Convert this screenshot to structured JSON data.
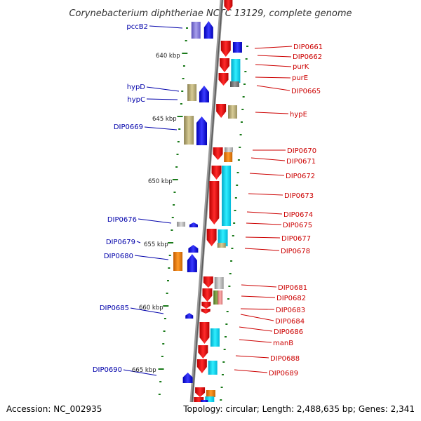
{
  "title": "Corynebacterium diphtheriae NCTC 13129, complete genome",
  "accession": "Accession: NC_002935",
  "topology": "Topology: circular; Length: 2,488,635 bp; Genes: 2,341",
  "scale_labels": [
    "640 kbp",
    "645 kbp",
    "650 kbp",
    "655 kbp",
    "660 kbp",
    "665 kbp"
  ],
  "colors": {
    "forward_label": "#0000aa",
    "reverse_label": "#cc0000",
    "tick": "#1a7a1a",
    "backbone": "#8c8c8c"
  },
  "left_labels": [
    {
      "text": "pccB2"
    },
    {
      "text": "hypD"
    },
    {
      "text": "hypC"
    },
    {
      "text": "DIP0669"
    },
    {
      "text": "DIP0676"
    },
    {
      "text": "DIP0679"
    },
    {
      "text": "DIP0680"
    },
    {
      "text": "DIP0685"
    },
    {
      "text": "DIP0690"
    }
  ],
  "right_labels": [
    {
      "text": "DIP0661"
    },
    {
      "text": "DIP0662"
    },
    {
      "text": "purK"
    },
    {
      "text": "purE"
    },
    {
      "text": "DIP0665"
    },
    {
      "text": "hypE"
    },
    {
      "text": "DIP0670"
    },
    {
      "text": "DIP0671"
    },
    {
      "text": "DIP0672"
    },
    {
      "text": "DIP0673"
    },
    {
      "text": "DIP0674"
    },
    {
      "text": "DIP0675"
    },
    {
      "text": "DIP0677"
    },
    {
      "text": "DIP0678"
    },
    {
      "text": "DIP0681"
    },
    {
      "text": "DIP0682"
    },
    {
      "text": "DIP0683"
    },
    {
      "text": "DIP0684"
    },
    {
      "text": "DIP0686"
    },
    {
      "text": "manB"
    },
    {
      "text": "DIP0688"
    },
    {
      "text": "DIP0689"
    }
  ]
}
